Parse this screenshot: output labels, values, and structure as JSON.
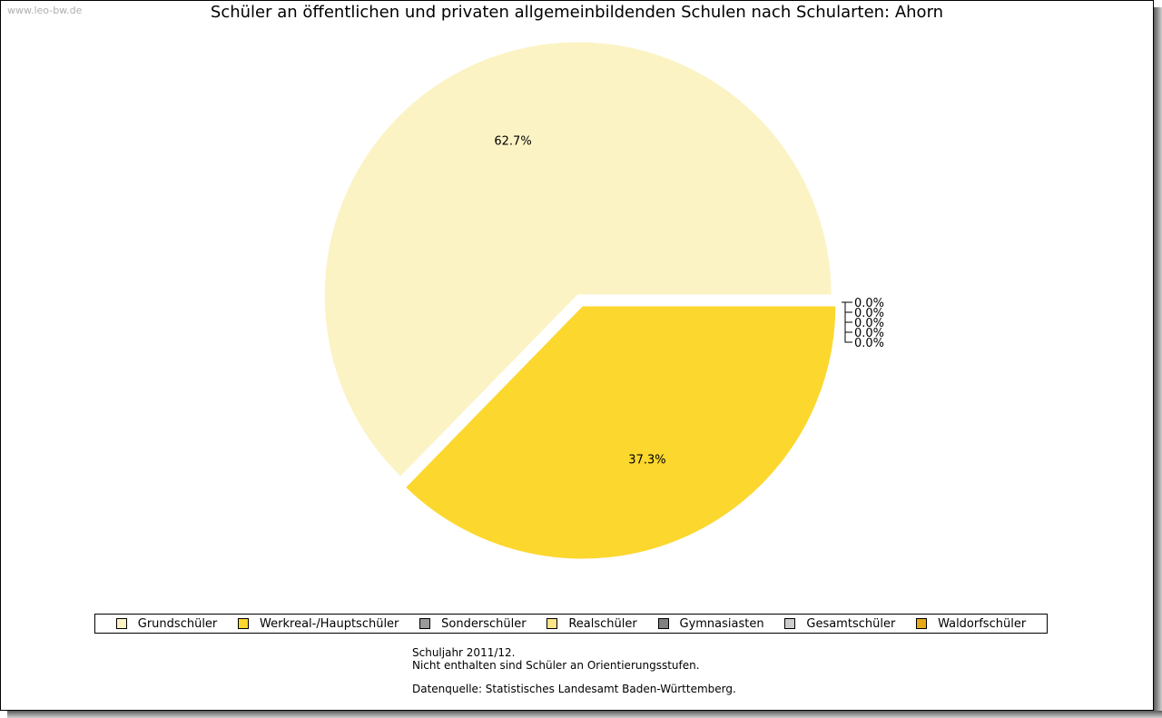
{
  "watermark": "www.leo-bw.de",
  "chart_data": {
    "type": "pie",
    "title": "Schüler an öffentlichen und privaten allgemeinbildenden Schulen nach Schularten: Ahorn",
    "slices": [
      {
        "name": "Grundschüler",
        "value": 62.7,
        "label": "62.7%",
        "color": "#fcf3c5"
      },
      {
        "name": "Werkreal-/Hauptschüler",
        "value": 37.3,
        "label": "37.3%",
        "color": "#fcd72e"
      },
      {
        "name": "Sonderschüler",
        "value": 0.0,
        "label": "0.0%",
        "color": "#9a9a9a"
      },
      {
        "name": "Realschüler",
        "value": 0.0,
        "label": "0.0%",
        "color": "#fde58a"
      },
      {
        "name": "Gymnasiasten",
        "value": 0.0,
        "label": "0.0%",
        "color": "#808080"
      },
      {
        "name": "Gesamtschüler",
        "value": 0.0,
        "label": "0.0%",
        "color": "#cccccc"
      },
      {
        "name": "Waldorfschüler",
        "value": 0.0,
        "label": "0.0%",
        "color": "#e6a817"
      }
    ],
    "legend_position": "bottom"
  },
  "notes": {
    "line1": "Schuljahr 2011/12.",
    "line2": "Nicht enthalten sind Schüler an Orientierungsstufen.",
    "line3": "Datenquelle: Statistisches Landesamt Baden-Württemberg."
  }
}
